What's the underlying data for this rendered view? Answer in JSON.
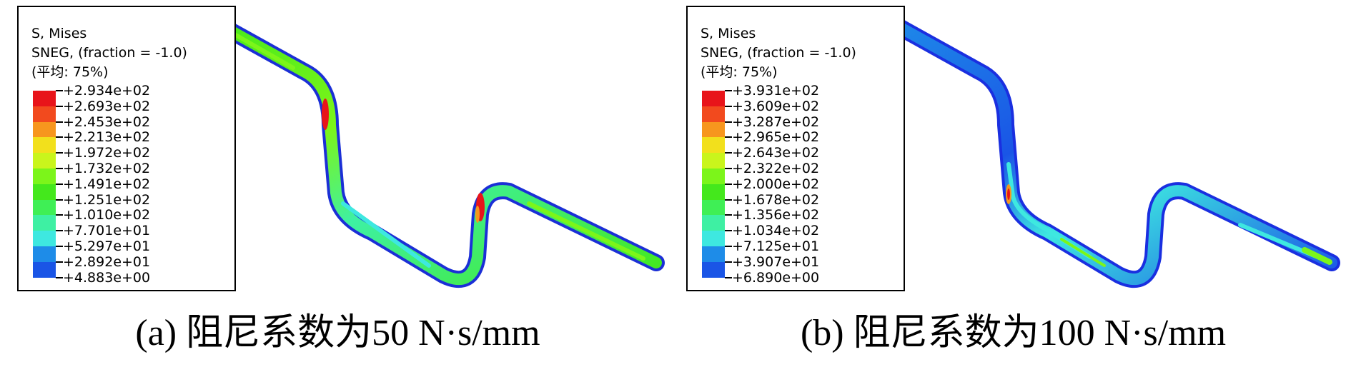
{
  "colors": {
    "contour": [
      "#e8141a",
      "#f24a1e",
      "#f7961e",
      "#f2e01c",
      "#c9f51c",
      "#7cf51a",
      "#44e81c",
      "#3fef55",
      "#3ef0a3",
      "#3ee8e0",
      "#1e8ce8",
      "#1a55e6",
      "#1a2fe0"
    ],
    "pipe_edge": "#1b2fd6"
  },
  "panels": [
    {
      "legend": {
        "title": "S, Mises",
        "subtitle": "SNEG, (fraction = -1.0)",
        "average": "(平均: 75%)",
        "values": [
          "+2.934e+02",
          "+2.693e+02",
          "+2.453e+02",
          "+2.213e+02",
          "+1.972e+02",
          "+1.732e+02",
          "+1.491e+02",
          "+1.251e+02",
          "+1.010e+02",
          "+7.701e+01",
          "+5.297e+01",
          "+2.892e+01",
          "+4.883e+00"
        ]
      },
      "caption": "(a) 阻尼系数为50 N·s/mm"
    },
    {
      "legend": {
        "title": "S, Mises",
        "subtitle": "SNEG, (fraction = -1.0)",
        "average": "(平均: 75%)",
        "values": [
          "+3.931e+02",
          "+3.609e+02",
          "+3.287e+02",
          "+2.965e+02",
          "+2.643e+02",
          "+2.322e+02",
          "+2.000e+02",
          "+1.678e+02",
          "+1.356e+02",
          "+1.034e+02",
          "+7.125e+01",
          "+3.907e+01",
          "+6.890e+00"
        ]
      },
      "caption": "(b) 阻尼系数为100 N·s/mm"
    }
  ]
}
